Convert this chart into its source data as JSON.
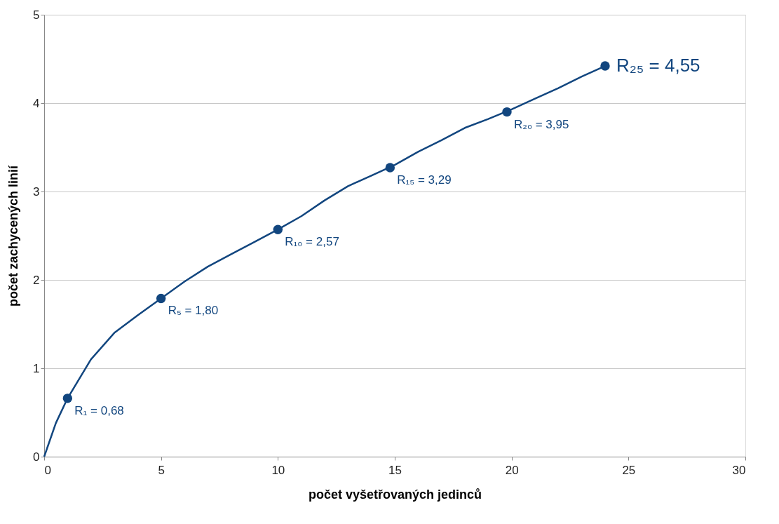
{
  "chart_data": {
    "type": "line",
    "xlabel": "počet vyšetřovaných jedinců",
    "ylabel": "počet zachycených linií",
    "xlim": [
      0,
      30
    ],
    "xticks": [
      0,
      5,
      10,
      15,
      20,
      25,
      30
    ],
    "ylim": [
      0,
      5
    ],
    "yticks": [
      0,
      1,
      2,
      3,
      4,
      5
    ],
    "grid": "y",
    "series": [
      {
        "color": "#12467f",
        "marker": "none",
        "x": [
          0,
          0.5,
          1,
          2,
          3,
          4,
          5,
          6,
          7,
          8,
          9,
          10,
          11,
          12,
          13,
          14,
          15,
          16,
          17,
          18,
          19,
          20,
          21,
          22,
          23,
          24
        ],
        "values": [
          0,
          0.38,
          0.66,
          1.1,
          1.4,
          1.6,
          1.79,
          1.98,
          2.15,
          2.29,
          2.43,
          2.57,
          2.72,
          2.9,
          3.06,
          3.18,
          3.3,
          3.45,
          3.58,
          3.72,
          3.82,
          3.93,
          4.05,
          4.17,
          4.3,
          4.42
        ]
      },
      {
        "type": "scatter",
        "color": "#12467f",
        "marker": "circle",
        "x": [
          1,
          5,
          10,
          14.8,
          19.8,
          24
        ],
        "values": [
          0.66,
          1.79,
          2.57,
          3.27,
          3.9,
          4.42
        ]
      }
    ],
    "annotations": [
      {
        "text": "R₁ = 0,68",
        "x": 1,
        "y": 0.66
      },
      {
        "text": "R₅ =  1,80",
        "x": 5,
        "y": 1.79
      },
      {
        "text": "R₁₀ = 2,57",
        "x": 10,
        "y": 2.57
      },
      {
        "text": "R₁₅ = 3,29",
        "x": 14.8,
        "y": 3.27
      },
      {
        "text": "R₂₀ = 3,95",
        "x": 19.8,
        "y": 3.9
      },
      {
        "text": "R₂₅ = 4,55",
        "x": 24,
        "y": 4.42
      }
    ]
  }
}
